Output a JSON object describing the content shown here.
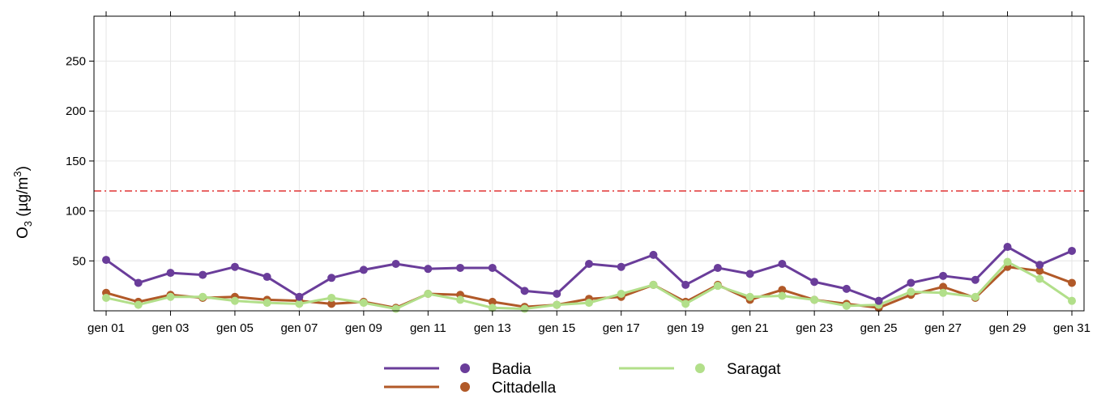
{
  "chart_data": {
    "type": "line",
    "ylabel": {
      "main": "O",
      "sub": "3",
      "unit_prefix": " (µg/m",
      "unit_sup": "3",
      "unit_suffix": ")"
    },
    "xlabel": "",
    "x": [
      "gen 01",
      "gen 02",
      "gen 03",
      "gen 04",
      "gen 05",
      "gen 06",
      "gen 07",
      "gen 08",
      "gen 09",
      "gen 10",
      "gen 11",
      "gen 12",
      "gen 13",
      "gen 14",
      "gen 15",
      "gen 16",
      "gen 17",
      "gen 18",
      "gen 19",
      "gen 20",
      "gen 21",
      "gen 22",
      "gen 23",
      "gen 24",
      "gen 25",
      "gen 26",
      "gen 27",
      "gen 28",
      "gen 29",
      "gen 30",
      "gen 31"
    ],
    "x_tick_labels": [
      "gen 01",
      "gen 03",
      "gen 05",
      "gen 07",
      "gen 09",
      "gen 11",
      "gen 13",
      "gen 15",
      "gen 17",
      "gen 19",
      "gen 21",
      "gen 23",
      "gen 25",
      "gen 27",
      "gen 29",
      "gen 31"
    ],
    "y_ticks": [
      50,
      100,
      150,
      200,
      250
    ],
    "y_tick_labels": [
      "50",
      "100",
      "150",
      "200",
      "250"
    ],
    "ylim": [
      0,
      295
    ],
    "grid": true,
    "threshold": {
      "value": 120,
      "color": "#dd2222",
      "style": "dash-dot"
    },
    "legend_position": "bottom",
    "series": [
      {
        "name": "Badia",
        "color": "#6a3d9a",
        "values": [
          51,
          28,
          38,
          36,
          44,
          34,
          14,
          33,
          41,
          47,
          42,
          43,
          43,
          20,
          17,
          47,
          44,
          56,
          26,
          43,
          37,
          47,
          29,
          22,
          10,
          28,
          35,
          31,
          64,
          46,
          60
        ]
      },
      {
        "name": "Cittadella",
        "color": "#b15928",
        "values": [
          18,
          9,
          16,
          13,
          14,
          11,
          10,
          7,
          9,
          3,
          17,
          16,
          9,
          4,
          6,
          12,
          14,
          26,
          9,
          26,
          11,
          21,
          11,
          7,
          3,
          16,
          24,
          13,
          44,
          40,
          28
        ]
      },
      {
        "name": "Saragat",
        "color": "#b2df8a",
        "values": [
          13,
          6,
          14,
          14,
          10,
          8,
          7,
          13,
          8,
          2,
          17,
          11,
          3,
          2,
          6,
          8,
          17,
          26,
          7,
          25,
          14,
          15,
          11,
          5,
          6,
          19,
          18,
          14,
          49,
          32,
          10
        ]
      }
    ]
  }
}
